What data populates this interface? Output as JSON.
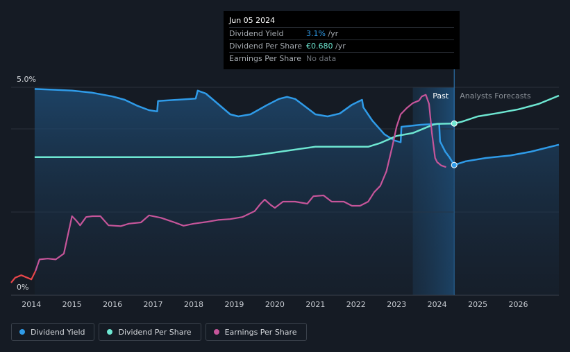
{
  "tooltip": {
    "date": "Jun 05 2024",
    "rows": [
      {
        "label": "Dividend Yield",
        "value": "3.1%",
        "unit": " /yr",
        "color": "#2f9be8"
      },
      {
        "label": "Dividend Per Share",
        "value": "€0.680",
        "unit": " /yr",
        "color": "#6ee7d2"
      },
      {
        "label": "Earnings Per Share",
        "value": "No data",
        "unit": "",
        "color": "#6b7077"
      }
    ]
  },
  "legend": [
    {
      "label": "Dividend Yield",
      "color": "#2f9be8"
    },
    {
      "label": "Dividend Per Share",
      "color": "#6ee7d2"
    },
    {
      "label": "Earnings Per Share",
      "color": "#c6559a"
    }
  ],
  "chart_data": {
    "type": "line",
    "title": "",
    "xlabel": "",
    "ylabel": "",
    "x_ticks": [
      "2014",
      "2015",
      "2016",
      "2017",
      "2018",
      "2019",
      "2020",
      "2021",
      "2022",
      "2023",
      "2024",
      "2025",
      "2026"
    ],
    "xlim": [
      2013.5,
      2027.0
    ],
    "ylim": [
      0,
      5
    ],
    "y_tick_labels": [
      {
        "value": 5,
        "label": "5.0%"
      },
      {
        "value": 0,
        "label": "0%"
      }
    ],
    "gridlines": [
      5,
      4,
      2
    ],
    "past_label": "Past",
    "forecast_label": "Analysts Forecasts",
    "forecast_band": [
      2023.4,
      2024.42
    ],
    "cursor_x": 2024.42,
    "series": [
      {
        "name": "Dividend Yield",
        "color": "#2f9be8",
        "area": true,
        "points": [
          [
            2014.08,
            4.96
          ],
          [
            2014.6,
            4.94
          ],
          [
            2015.0,
            4.92
          ],
          [
            2015.5,
            4.87
          ],
          [
            2016.0,
            4.78
          ],
          [
            2016.3,
            4.7
          ],
          [
            2016.6,
            4.56
          ],
          [
            2016.9,
            4.45
          ],
          [
            2017.1,
            4.42
          ],
          [
            2017.12,
            4.67
          ],
          [
            2017.6,
            4.7
          ],
          [
            2018.05,
            4.73
          ],
          [
            2018.1,
            4.92
          ],
          [
            2018.3,
            4.85
          ],
          [
            2018.6,
            4.6
          ],
          [
            2018.9,
            4.35
          ],
          [
            2019.1,
            4.3
          ],
          [
            2019.4,
            4.35
          ],
          [
            2019.8,
            4.57
          ],
          [
            2020.1,
            4.72
          ],
          [
            2020.3,
            4.77
          ],
          [
            2020.5,
            4.72
          ],
          [
            2020.8,
            4.5
          ],
          [
            2021.0,
            4.35
          ],
          [
            2021.3,
            4.3
          ],
          [
            2021.6,
            4.37
          ],
          [
            2021.9,
            4.58
          ],
          [
            2022.15,
            4.7
          ],
          [
            2022.18,
            4.52
          ],
          [
            2022.4,
            4.2
          ],
          [
            2022.7,
            3.87
          ],
          [
            2022.95,
            3.72
          ],
          [
            2023.1,
            3.68
          ],
          [
            2023.12,
            4.05
          ],
          [
            2023.6,
            4.1
          ],
          [
            2024.05,
            4.12
          ],
          [
            2024.07,
            3.7
          ],
          [
            2024.2,
            3.45
          ],
          [
            2024.3,
            3.32
          ],
          [
            2024.42,
            3.13
          ],
          [
            2024.7,
            3.22
          ],
          [
            2025.2,
            3.3
          ],
          [
            2025.8,
            3.36
          ],
          [
            2026.3,
            3.45
          ],
          [
            2027.0,
            3.62
          ]
        ]
      },
      {
        "name": "Dividend Per Share",
        "color": "#6ee7d2",
        "area": false,
        "points": [
          [
            2014.08,
            3.32
          ],
          [
            2015.0,
            3.32
          ],
          [
            2016.0,
            3.32
          ],
          [
            2017.0,
            3.32
          ],
          [
            2018.0,
            3.32
          ],
          [
            2019.0,
            3.32
          ],
          [
            2019.3,
            3.34
          ],
          [
            2019.7,
            3.39
          ],
          [
            2020.2,
            3.46
          ],
          [
            2020.7,
            3.53
          ],
          [
            2021.0,
            3.57
          ],
          [
            2021.5,
            3.57
          ],
          [
            2022.0,
            3.57
          ],
          [
            2022.3,
            3.57
          ],
          [
            2022.6,
            3.66
          ],
          [
            2023.0,
            3.83
          ],
          [
            2023.4,
            3.9
          ],
          [
            2023.7,
            4.02
          ],
          [
            2023.9,
            4.1
          ],
          [
            2024.0,
            4.12
          ],
          [
            2024.42,
            4.13
          ],
          [
            2024.6,
            4.17
          ],
          [
            2025.0,
            4.3
          ],
          [
            2025.5,
            4.38
          ],
          [
            2026.0,
            4.47
          ],
          [
            2026.5,
            4.6
          ],
          [
            2027.0,
            4.8
          ]
        ]
      },
      {
        "name": "Earnings Per Share",
        "color": "#c6559a",
        "area": false,
        "segments": [
          {
            "color": "#e8464a",
            "points": [
              [
                2013.5,
                0.3
              ],
              [
                2013.6,
                0.42
              ],
              [
                2013.75,
                0.48
              ],
              [
                2013.9,
                0.42
              ],
              [
                2014.0,
                0.38
              ],
              [
                2014.1,
                0.58
              ]
            ]
          },
          {
            "color": "#c6559a",
            "points": [
              [
                2014.1,
                0.58
              ],
              [
                2014.2,
                0.86
              ],
              [
                2014.4,
                0.88
              ],
              [
                2014.6,
                0.86
              ],
              [
                2014.8,
                1.0
              ],
              [
                2014.9,
                1.45
              ],
              [
                2015.0,
                1.9
              ],
              [
                2015.1,
                1.8
              ],
              [
                2015.2,
                1.68
              ],
              [
                2015.35,
                1.88
              ],
              [
                2015.5,
                1.9
              ],
              [
                2015.7,
                1.9
              ],
              [
                2015.9,
                1.68
              ],
              [
                2016.2,
                1.66
              ],
              [
                2016.4,
                1.72
              ],
              [
                2016.7,
                1.75
              ],
              [
                2016.9,
                1.92
              ],
              [
                2017.2,
                1.86
              ],
              [
                2017.5,
                1.76
              ],
              [
                2017.75,
                1.67
              ],
              [
                2018.0,
                1.72
              ],
              [
                2018.3,
                1.76
              ],
              [
                2018.6,
                1.81
              ],
              [
                2018.9,
                1.83
              ],
              [
                2019.2,
                1.88
              ],
              [
                2019.5,
                2.02
              ],
              [
                2019.65,
                2.2
              ],
              [
                2019.75,
                2.3
              ],
              [
                2019.9,
                2.17
              ],
              [
                2020.0,
                2.1
              ],
              [
                2020.2,
                2.25
              ],
              [
                2020.5,
                2.25
              ],
              [
                2020.8,
                2.2
              ],
              [
                2020.95,
                2.38
              ],
              [
                2021.2,
                2.4
              ],
              [
                2021.4,
                2.25
              ],
              [
                2021.7,
                2.25
              ],
              [
                2021.9,
                2.15
              ],
              [
                2022.1,
                2.15
              ],
              [
                2022.3,
                2.25
              ],
              [
                2022.45,
                2.48
              ],
              [
                2022.6,
                2.63
              ],
              [
                2022.75,
                2.98
              ],
              [
                2022.9,
                3.6
              ],
              [
                2023.0,
                4.05
              ],
              [
                2023.1,
                4.35
              ],
              [
                2023.25,
                4.5
              ],
              [
                2023.4,
                4.62
              ],
              [
                2023.55,
                4.68
              ],
              [
                2023.62,
                4.78
              ],
              [
                2023.72,
                4.82
              ],
              [
                2023.8,
                4.6
              ],
              [
                2023.87,
                3.9
              ],
              [
                2023.95,
                3.3
              ],
              [
                2024.0,
                3.2
              ],
              [
                2024.1,
                3.12
              ],
              [
                2024.22,
                3.08
              ]
            ]
          }
        ]
      }
    ],
    "markers": [
      {
        "series": "Dividend Per Share",
        "x": 2024.42,
        "y": 4.13,
        "color": "#6ee7d2"
      },
      {
        "series": "Dividend Yield",
        "x": 2024.42,
        "y": 3.13,
        "color": "#2f9be8"
      }
    ]
  }
}
